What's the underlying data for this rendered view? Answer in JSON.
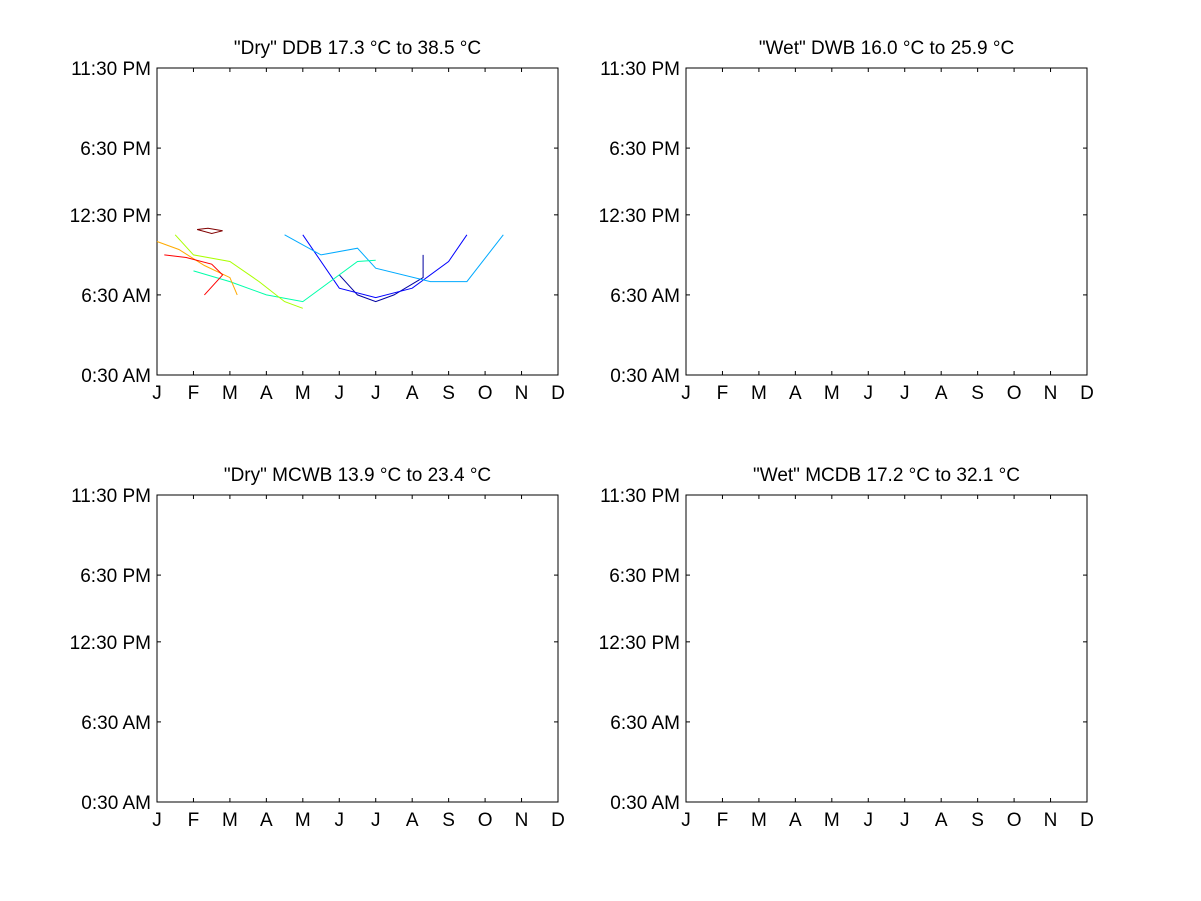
{
  "chart_data": [
    {
      "type": "contour",
      "title": "\"Dry\" DDB  17.3 °C to  38.5 °C",
      "x_ticks": [
        "J",
        "F",
        "M",
        "A",
        "M",
        "J",
        "J",
        "A",
        "S",
        "O",
        "N",
        "D"
      ],
      "y_ticks": [
        "0:30 AM",
        "6:30 AM",
        "12:30 PM",
        "6:30 PM",
        "11:30 PM"
      ],
      "xlim": [
        1,
        12
      ],
      "ylim": [
        "0:30 AM",
        "11:30 PM"
      ],
      "grid": false,
      "contours": [
        {
          "color": "#0000a0",
          "points": [
            [
              6.0,
              8.5
            ],
            [
              6.5,
              7.0
            ],
            [
              7.0,
              6.5
            ],
            [
              7.5,
              7.0
            ],
            [
              8.3,
              8.3
            ],
            [
              8.3,
              10.0
            ]
          ]
        },
        {
          "color": "#0000ff",
          "points": [
            [
              5.0,
              11.5
            ],
            [
              6.0,
              7.5
            ],
            [
              7.0,
              6.8
            ],
            [
              8.0,
              7.5
            ],
            [
              9.0,
              9.5
            ],
            [
              9.5,
              11.5
            ]
          ]
        },
        {
          "color": "#00aaff",
          "points": [
            [
              4.5,
              11.5
            ],
            [
              5.5,
              10.0
            ],
            [
              6.5,
              10.5
            ],
            [
              7.0,
              9.0
            ],
            [
              8.5,
              8.0
            ],
            [
              9.5,
              8.0
            ],
            [
              10.5,
              11.5
            ]
          ]
        },
        {
          "color": "#00ffaa",
          "points": [
            [
              2.0,
              8.8
            ],
            [
              3.0,
              8.0
            ],
            [
              4.0,
              7.0
            ],
            [
              5.0,
              6.5
            ],
            [
              6.5,
              9.5
            ],
            [
              7.0,
              9.6
            ]
          ]
        },
        {
          "color": "#aaff00",
          "points": [
            [
              1.5,
              11.5
            ],
            [
              2.0,
              10.0
            ],
            [
              3.0,
              9.5
            ],
            [
              3.8,
              8.0
            ],
            [
              4.5,
              6.5
            ],
            [
              5.0,
              6.0
            ]
          ]
        },
        {
          "color": "#ffaa00",
          "points": [
            [
              1.0,
              11.0
            ],
            [
              1.6,
              10.4
            ],
            [
              2.3,
              9.2
            ],
            [
              3.0,
              8.3
            ],
            [
              3.2,
              7.0
            ]
          ]
        },
        {
          "color": "#ff0000",
          "points": [
            [
              1.2,
              10.0
            ],
            [
              1.8,
              9.8
            ],
            [
              2.5,
              9.3
            ],
            [
              2.8,
              8.5
            ],
            [
              2.3,
              7.0
            ]
          ]
        },
        {
          "color": "#800000",
          "points": [
            [
              2.1,
              11.9
            ],
            [
              2.4,
              12.0
            ],
            [
              2.8,
              11.8
            ],
            [
              2.5,
              11.6
            ],
            [
              2.1,
              11.9
            ]
          ]
        }
      ]
    },
    {
      "type": "contour",
      "title": "\"Wet\" DWB  16.0 °C to  25.9 °C",
      "x_ticks": [
        "J",
        "F",
        "M",
        "A",
        "M",
        "J",
        "J",
        "A",
        "S",
        "O",
        "N",
        "D"
      ],
      "y_ticks": [
        "0:30 AM",
        "6:30 AM",
        "12:30 PM",
        "6:30 PM",
        "11:30 PM"
      ],
      "xlim": [
        1,
        12
      ],
      "ylim": [
        "0:30 AM",
        "11:30 PM"
      ],
      "grid": false,
      "contours": []
    },
    {
      "type": "contour",
      "title": "\"Dry\" MCWB  13.9 °C to  23.4 °C",
      "x_ticks": [
        "J",
        "F",
        "M",
        "A",
        "M",
        "J",
        "J",
        "A",
        "S",
        "O",
        "N",
        "D"
      ],
      "y_ticks": [
        "0:30 AM",
        "6:30 AM",
        "12:30 PM",
        "6:30 PM",
        "11:30 PM"
      ],
      "xlim": [
        1,
        12
      ],
      "ylim": [
        "0:30 AM",
        "11:30 PM"
      ],
      "grid": false,
      "contours": []
    },
    {
      "type": "contour",
      "title": "\"Wet\" MCDB  17.2 °C to  32.1 °C",
      "x_ticks": [
        "J",
        "F",
        "M",
        "A",
        "M",
        "J",
        "J",
        "A",
        "S",
        "O",
        "N",
        "D"
      ],
      "y_ticks": [
        "0:30 AM",
        "6:30 AM",
        "12:30 PM",
        "6:30 PM",
        "11:30 PM"
      ],
      "xlim": [
        1,
        12
      ],
      "ylim": [
        "0:30 AM",
        "11:30 PM"
      ],
      "grid": false,
      "contours": []
    }
  ]
}
